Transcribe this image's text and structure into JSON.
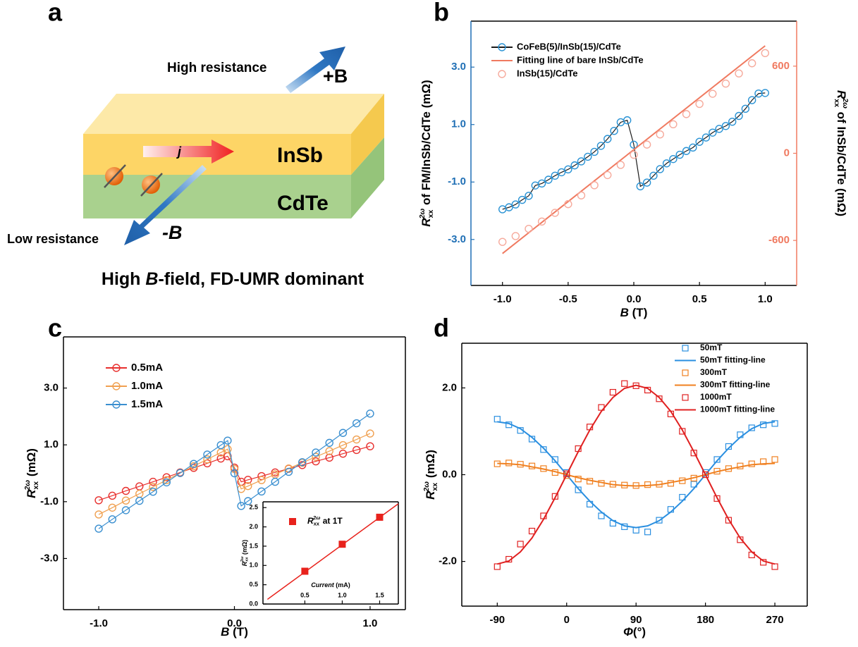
{
  "diagram": {
    "panel": "a",
    "high_resistance": "High resistance",
    "plus_b": "+B",
    "current": "j",
    "top_layer": "InSb",
    "bottom_layer": "CdTe",
    "low_resistance": "Low resistance",
    "minus_b": "-B",
    "caption": [
      "High ",
      "B",
      "-field, FD-UMR dominant"
    ]
  },
  "chart_data": [
    {
      "type": "line",
      "panel": "b",
      "xlabel": {
        "symbol": "B",
        "text": " (T)"
      },
      "ylabel": {
        "symbol": "R",
        "sub": "xx",
        "sup": "2ω",
        "text": " of FM/InSb/CdTe (mΩ)"
      },
      "y2label": {
        "symbol": "R",
        "sub": "xx",
        "sup": "2ω",
        "text": " of InSb/CdTe (mΩ)"
      },
      "xlim": [
        -1.24,
        1.24
      ],
      "xticks": [
        {
          "value": -1,
          "label": "-1.0"
        },
        {
          "value": -0.5,
          "label": "-0.5"
        },
        {
          "value": 0,
          "label": "0.0"
        },
        {
          "value": 0.5,
          "label": "0.5"
        },
        {
          "value": 1,
          "label": "1.0"
        }
      ],
      "ylim": [
        -4.6,
        4.6
      ],
      "yticks": [
        {
          "value": 3,
          "label": "3.0"
        },
        {
          "value": 1,
          "label": "1.0"
        },
        {
          "value": -1,
          "label": "-1.0"
        },
        {
          "value": -3,
          "label": "-3.0"
        }
      ],
      "y2lim": [
        -910,
        910
      ],
      "y2ticks": [
        600,
        0,
        -600
      ],
      "y_color": "#1f6fb5",
      "y2_color": "#f07a60",
      "legend": "upper left",
      "series": [
        {
          "name": "CoFeB(5)/InSb(15)/CdTe",
          "color": "#2a93d5",
          "line_color": "#1a1a1a",
          "style": "line+markers",
          "marker": "circle",
          "x": [
            -1,
            -0.95,
            -0.9,
            -0.85,
            -0.8,
            -0.75,
            -0.7,
            -0.65,
            -0.6,
            -0.55,
            -0.5,
            -0.45,
            -0.4,
            -0.35,
            -0.3,
            -0.25,
            -0.2,
            -0.15,
            -0.1,
            -0.05,
            0,
            0.05,
            0.1,
            0.15,
            0.2,
            0.25,
            0.3,
            0.35,
            0.4,
            0.45,
            0.5,
            0.55,
            0.6,
            0.65,
            0.7,
            0.75,
            0.8,
            0.85,
            0.9,
            0.95,
            1
          ],
          "values": [
            -1.95,
            -1.88,
            -1.78,
            -1.62,
            -1.48,
            -1.12,
            -1.05,
            -0.92,
            -0.78,
            -0.66,
            -0.56,
            -0.42,
            -0.28,
            -0.12,
            0.05,
            0.26,
            0.5,
            0.78,
            1.08,
            1.15,
            0.3,
            -1.15,
            -1.02,
            -0.78,
            -0.55,
            -0.35,
            -0.2,
            -0.05,
            0.08,
            0.2,
            0.4,
            0.55,
            0.72,
            0.85,
            0.95,
            1.1,
            1.3,
            1.55,
            1.85,
            2.08,
            2.1
          ]
        },
        {
          "name": "Fitting line of bare InSb/CdTe",
          "color": "#f07a60",
          "style": "line",
          "axis": "y2",
          "x": [
            -1,
            1
          ],
          "values": [
            -690,
            740
          ]
        },
        {
          "name": "InSb(15)/CdTe",
          "color": "#f6aa9c",
          "style": "markers",
          "marker": "circle",
          "axis": "y2",
          "x": [
            -1,
            -0.9,
            -0.8,
            -0.7,
            -0.6,
            -0.5,
            -0.4,
            -0.3,
            -0.2,
            -0.1,
            0,
            0.1,
            0.2,
            0.3,
            0.4,
            0.5,
            0.6,
            0.7,
            0.8,
            0.9,
            1
          ],
          "values": [
            -610,
            -570,
            -520,
            -470,
            -410,
            -350,
            -290,
            -220,
            -150,
            -80,
            -10,
            60,
            130,
            200,
            270,
            340,
            410,
            480,
            550,
            620,
            690
          ]
        }
      ]
    },
    {
      "type": "line",
      "panel": "c",
      "xlabel": {
        "symbol": "B",
        "text": " (T)"
      },
      "ylabel": {
        "symbol": "R",
        "sub": "xx",
        "sup": "2ω",
        "text": " (mΩ)"
      },
      "xlim": [
        -1.26,
        1.26
      ],
      "xticks": [
        {
          "value": -1,
          "label": "-1.0"
        },
        {
          "value": 0,
          "label": "0.0"
        },
        {
          "value": 1,
          "label": "1.0"
        }
      ],
      "ylim": [
        -4.8,
        4.8
      ],
      "yticks": [
        {
          "value": 3,
          "label": "3.0"
        },
        {
          "value": 1,
          "label": "1.0"
        },
        {
          "value": -1,
          "label": "-1.0"
        },
        {
          "value": -3,
          "label": "-3.0"
        }
      ],
      "legend": "upper left",
      "x": [
        -1,
        -0.9,
        -0.8,
        -0.7,
        -0.6,
        -0.5,
        -0.4,
        -0.3,
        -0.2,
        -0.1,
        -0.05,
        0,
        0.05,
        0.1,
        0.2,
        0.3,
        0.4,
        0.5,
        0.6,
        0.7,
        0.8,
        0.9,
        1
      ],
      "series": [
        {
          "name": "0.5mA",
          "color": "#e8302e",
          "style": "line+markers",
          "marker": "circle",
          "values": [
            -0.95,
            -0.79,
            -0.62,
            -0.46,
            -0.3,
            -0.14,
            0.03,
            0.19,
            0.35,
            0.52,
            0.6,
            0.2,
            -0.3,
            -0.23,
            -0.1,
            0.03,
            0.16,
            0.29,
            0.42,
            0.55,
            0.69,
            0.82,
            0.95
          ]
        },
        {
          "name": "1.0mA",
          "color": "#f0a050",
          "style": "line+markers",
          "marker": "circle",
          "values": [
            -1.45,
            -1.21,
            -0.96,
            -0.72,
            -0.48,
            -0.24,
            0.01,
            0.25,
            0.49,
            0.73,
            0.85,
            0.15,
            -0.55,
            -0.45,
            -0.24,
            -0.04,
            0.17,
            0.37,
            0.58,
            0.78,
            0.99,
            1.19,
            1.4
          ]
        },
        {
          "name": "1.5mA",
          "color": "#3a8fd0",
          "style": "line+markers",
          "marker": "circle",
          "values": [
            -1.95,
            -1.62,
            -1.3,
            -0.97,
            -0.65,
            -0.32,
            0.01,
            0.33,
            0.66,
            0.99,
            1.15,
            0,
            -1.15,
            -0.98,
            -0.64,
            -0.3,
            0.05,
            0.39,
            0.73,
            1.07,
            1.42,
            1.76,
            2.1
          ]
        }
      ]
    },
    {
      "type": "line",
      "panel": "d",
      "xlabel": {
        "symbol": "Φ",
        "text": "(°)"
      },
      "ylabel": {
        "symbol": "R",
        "sub": "xx",
        "sup": "2ω",
        "text": " (mΩ)"
      },
      "xlim": [
        -136,
        312
      ],
      "xticks": [
        -90,
        0,
        90,
        180,
        270
      ],
      "ylim": [
        -3.03,
        3.03
      ],
      "yticks": [
        {
          "value": 2,
          "label": "2.0"
        },
        {
          "value": 0,
          "label": "0.0"
        },
        {
          "value": -2,
          "label": "-2.0"
        }
      ],
      "legend": "upper right",
      "x": [
        -90,
        -75,
        -60,
        -45,
        -30,
        -15,
        0,
        15,
        30,
        45,
        60,
        75,
        90,
        105,
        120,
        135,
        150,
        165,
        180,
        195,
        210,
        225,
        240,
        255,
        270
      ],
      "series": [
        {
          "name": "50mT",
          "color": "#2a8fe0",
          "style": "markers",
          "marker": "square",
          "values": [
            1.28,
            1.15,
            1.02,
            0.82,
            0.58,
            0.35,
            0.05,
            -0.35,
            -0.68,
            -0.95,
            -1.12,
            -1.2,
            -1.28,
            -1.32,
            -1.05,
            -0.8,
            -0.52,
            -0.22,
            0.05,
            0.35,
            0.65,
            0.92,
            1.08,
            1.15,
            1.18
          ]
        },
        {
          "name": "50mT fitting-line",
          "color": "#2a8fe0",
          "style": "line",
          "values": [
            1.22,
            1.18,
            1.06,
            0.86,
            0.61,
            0.32,
            0,
            -0.32,
            -0.61,
            -0.86,
            -1.06,
            -1.18,
            -1.22,
            -1.18,
            -1.06,
            -0.86,
            -0.61,
            -0.32,
            0,
            0.32,
            0.61,
            0.86,
            1.06,
            1.18,
            1.22
          ]
        },
        {
          "name": "300mT",
          "color": "#f08020",
          "style": "markers",
          "marker": "square",
          "values": [
            0.25,
            0.27,
            0.24,
            0.2,
            0.14,
            0.05,
            -0.02,
            -0.1,
            -0.15,
            -0.2,
            -0.22,
            -0.24,
            -0.25,
            -0.23,
            -0.22,
            -0.2,
            -0.14,
            -0.08,
            0,
            0.08,
            0.14,
            0.2,
            0.25,
            0.3,
            0.35
          ]
        },
        {
          "name": "300mT fitting-line",
          "color": "#f08020",
          "style": "line",
          "values": [
            0.26,
            0.25,
            0.23,
            0.18,
            0.13,
            0.07,
            0,
            -0.07,
            -0.13,
            -0.18,
            -0.23,
            -0.25,
            -0.26,
            -0.25,
            -0.23,
            -0.18,
            -0.13,
            -0.07,
            0,
            0.07,
            0.13,
            0.18,
            0.23,
            0.25,
            0.26
          ]
        },
        {
          "name": "1000mT",
          "color": "#e02020",
          "style": "markers",
          "marker": "square",
          "values": [
            -2.12,
            -1.95,
            -1.6,
            -1.3,
            -0.95,
            -0.5,
            0.02,
            0.6,
            1.1,
            1.55,
            1.9,
            2.1,
            2.05,
            1.95,
            1.75,
            1.4,
            1,
            0.5,
            0,
            -0.55,
            -1.05,
            -1.5,
            -1.85,
            -2.02,
            -2.12
          ]
        },
        {
          "name": "1000mT fitting-line",
          "color": "#e02020",
          "style": "line",
          "values": [
            -2.06,
            -1.99,
            -1.78,
            -1.46,
            -1.03,
            -0.53,
            0,
            0.53,
            1.03,
            1.46,
            1.78,
            1.99,
            2.06,
            1.99,
            1.78,
            1.46,
            1.03,
            0.53,
            0,
            -0.53,
            -1.03,
            -1.46,
            -1.78,
            -1.99,
            -2.06
          ]
        }
      ]
    },
    {
      "type": "scatter",
      "xlabel": {
        "symbol": "Current",
        "text": " (mA)"
      },
      "ylabel": {
        "symbol": "R",
        "sub": "xx",
        "sup": "2ω",
        "text": " (mΩ)"
      },
      "xlim": [
        -0.06,
        1.75
      ],
      "xticks": [
        0.5,
        {
          "value": 1,
          "label": "1.0"
        },
        1.5
      ],
      "ylim": [
        0,
        2.65
      ],
      "yticks": [
        {
          "value": 0,
          "label": "0.0"
        },
        0.5,
        {
          "value": 1,
          "label": "1.0"
        },
        1.5,
        {
          "value": 2,
          "label": "2.0"
        },
        2.5
      ],
      "legend": "upper left",
      "series": [
        {
          "name": {
            "symbol": "R",
            "sub": "xx",
            "sup": "2ω",
            "text": " at 1T"
          },
          "color": "#e8221c",
          "style": "markers",
          "marker": "square",
          "x": [
            0.5,
            1,
            1.5
          ],
          "values": [
            0.85,
            1.55,
            2.25
          ]
        },
        {
          "color": "#e8221c",
          "style": "line",
          "x": [
            0,
            1.75
          ],
          "values": [
            0.12,
            2.6
          ]
        }
      ]
    }
  ]
}
